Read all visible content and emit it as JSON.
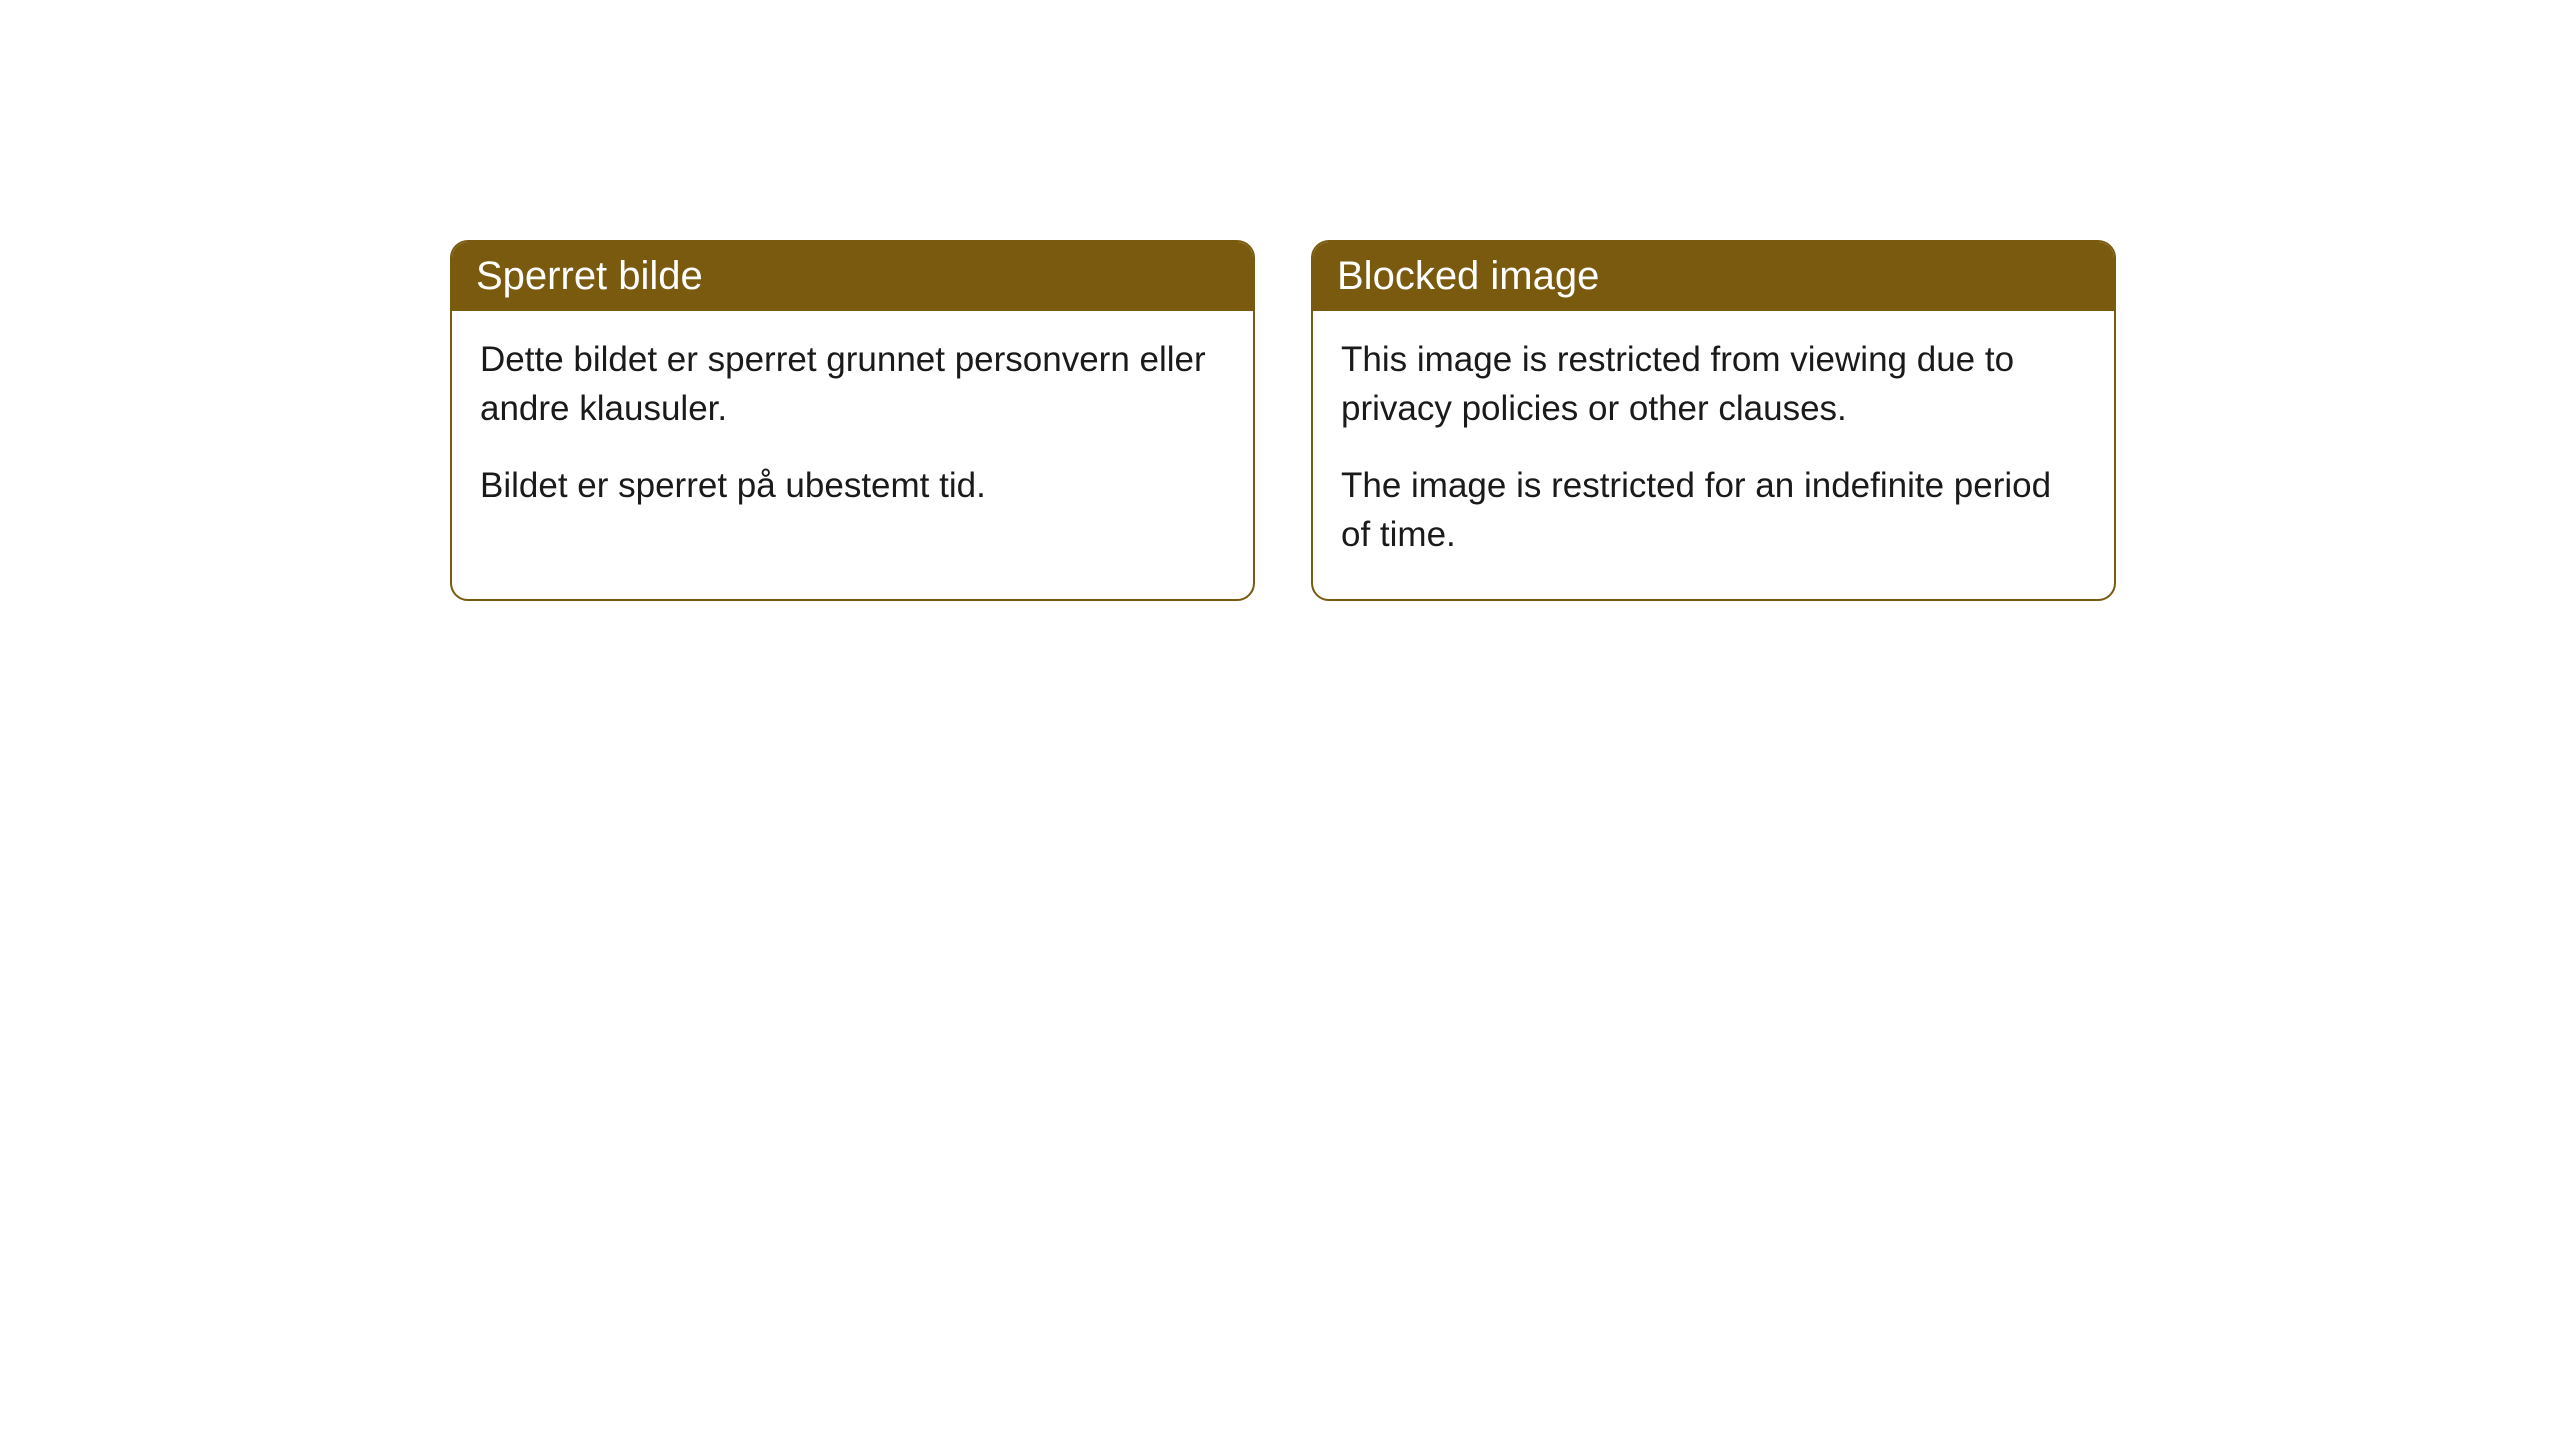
{
  "cards": [
    {
      "header": "Sperret bilde",
      "paragraph1": "Dette bildet er sperret grunnet personvern eller andre klausuler.",
      "paragraph2": "Bildet er sperret på ubestemt tid."
    },
    {
      "header": "Blocked image",
      "paragraph1": "This image is restricted from viewing due to privacy policies or other clauses.",
      "paragraph2": "The image is restricted for an indefinite period of time."
    }
  ],
  "styling": {
    "header_background": "#7a5a0f",
    "header_text_color": "#ffffff",
    "border_color": "#7a5a0f",
    "body_background": "#ffffff",
    "body_text_color": "#1a1a1a",
    "border_radius": 18,
    "header_fontsize": 40,
    "body_fontsize": 35
  }
}
